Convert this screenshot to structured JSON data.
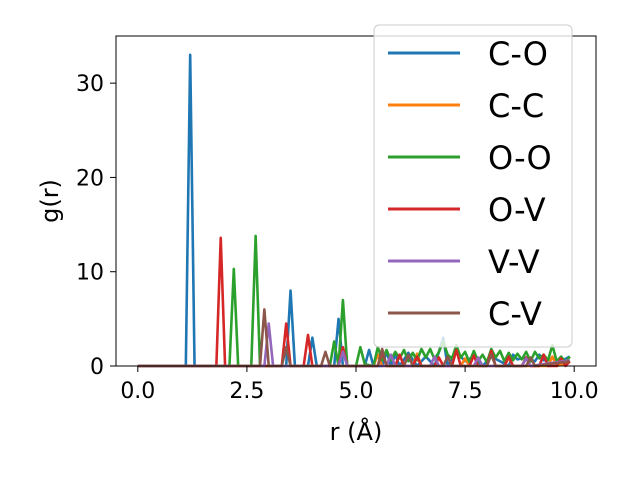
{
  "chart_data": {
    "type": "line",
    "title": "",
    "xlabel": "r (Å)",
    "ylabel": "g(r)",
    "xlim": [
      -0.5,
      10.5
    ],
    "ylim": [
      0,
      35
    ],
    "xticks": [
      0.0,
      2.5,
      5.0,
      7.5,
      10.0
    ],
    "xtick_labels": [
      "0.0",
      "2.5",
      "5.0",
      "7.5",
      "10.0"
    ],
    "yticks": [
      0,
      10,
      20,
      30
    ],
    "ytick_labels": [
      "0",
      "10",
      "20",
      "30"
    ],
    "grid": false,
    "legend_position": "upper-right",
    "series": [
      {
        "name": "C-O",
        "color": "#1f77b4",
        "x": [
          0.0,
          1.1,
          1.2,
          1.3,
          3.4,
          3.5,
          3.6,
          3.9,
          4.0,
          4.1,
          4.5,
          4.6,
          4.7,
          5.2,
          5.3,
          5.4,
          5.6,
          5.7,
          5.8,
          5.9,
          6.0,
          6.2,
          6.4,
          6.6,
          6.8,
          7.0,
          7.1,
          7.3,
          7.5,
          7.7,
          7.9,
          8.1,
          8.3,
          8.5,
          8.6,
          8.7,
          8.9,
          9.1,
          9.2,
          9.3,
          9.5,
          9.7,
          9.9
        ],
        "y": [
          0,
          0,
          33,
          0,
          0,
          8,
          0,
          0,
          3,
          0,
          0,
          5,
          0,
          0,
          1.7,
          0,
          0,
          1.5,
          0,
          1.2,
          0,
          1.4,
          0,
          1,
          0,
          3,
          0,
          1.5,
          0.5,
          1,
          0,
          1,
          0.5,
          0,
          1.2,
          0.7,
          0.9,
          0.5,
          1.2,
          0.6,
          0.8,
          0.5,
          1.0
        ]
      },
      {
        "name": "C-C",
        "color": "#ff7f0e",
        "x": [
          0.0,
          5.4,
          5.5,
          5.6,
          6.3,
          6.4,
          6.5,
          7.4,
          7.5,
          7.6,
          8.4,
          8.5,
          8.6,
          9.4,
          9.5,
          9.6,
          9.9
        ],
        "y": [
          0,
          0,
          1.2,
          0,
          0,
          1.3,
          0,
          0,
          0.8,
          0,
          0,
          0.9,
          0,
          0,
          1.0,
          0,
          0.4
        ]
      },
      {
        "name": "O-O",
        "color": "#2ca02c",
        "x": [
          0.0,
          2.1,
          2.2,
          2.3,
          2.6,
          2.7,
          2.8,
          4.4,
          4.5,
          4.6,
          4.7,
          4.8,
          5.0,
          5.1,
          5.2,
          5.4,
          5.5,
          5.6,
          5.7,
          5.8,
          5.9,
          6.0,
          6.1,
          6.2,
          6.3,
          6.4,
          6.5,
          6.6,
          6.7,
          6.8,
          6.9,
          7.0,
          7.1,
          7.2,
          7.3,
          7.4,
          7.5,
          7.6,
          7.7,
          7.8,
          7.9,
          8.0,
          8.1,
          8.2,
          8.3,
          8.4,
          8.5,
          8.6,
          8.7,
          8.8,
          8.9,
          9.0,
          9.1,
          9.2,
          9.3,
          9.4,
          9.5,
          9.6,
          9.7,
          9.8,
          9.9
        ],
        "y": [
          0,
          0,
          10.3,
          0,
          0,
          13.8,
          0,
          0,
          2.6,
          0,
          7,
          0,
          0,
          2,
          0.2,
          0,
          2,
          0.6,
          1.7,
          0.6,
          1.5,
          0.8,
          1.7,
          0.5,
          1.4,
          0.6,
          1.8,
          0.9,
          1.8,
          0.7,
          1.5,
          2.6,
          1.2,
          0.8,
          2.2,
          0.9,
          1.5,
          0.4,
          1.6,
          0.5,
          1.2,
          0.4,
          1.8,
          0.9,
          1.6,
          0.5,
          1.4,
          0.6,
          1.3,
          0.7,
          1.5,
          0.5,
          1.5,
          0.8,
          1.2,
          0.6,
          2.2,
          0.5,
          1.0,
          0.4,
          1.0
        ]
      },
      {
        "name": "O-V",
        "color": "#d62728",
        "x": [
          0.0,
          1.8,
          1.9,
          2.0,
          3.3,
          3.4,
          3.5,
          3.8,
          3.9,
          4.0,
          4.6,
          4.7,
          4.8,
          5.5,
          5.6,
          5.7,
          5.9,
          6.0,
          6.1,
          6.3,
          6.4,
          6.5,
          6.8,
          6.9,
          7.0,
          7.2,
          7.3,
          7.4,
          7.6,
          7.7,
          7.8,
          8.0,
          8.1,
          8.2,
          8.4,
          8.5,
          8.6,
          8.8,
          8.9,
          9.0,
          9.2,
          9.3,
          9.4,
          9.6,
          9.7,
          9.8,
          9.9
        ],
        "y": [
          0,
          0,
          13.6,
          0,
          0,
          4.5,
          0,
          0,
          3.3,
          0,
          0,
          2,
          0,
          0,
          1.5,
          0,
          0,
          1.2,
          0,
          0,
          1.0,
          0,
          0,
          0.9,
          0,
          0,
          1.7,
          0,
          0,
          1.1,
          0,
          0,
          1.6,
          0,
          0,
          1.0,
          0,
          0,
          0.9,
          0,
          0,
          1.2,
          0,
          0,
          0.8,
          0,
          0.5
        ]
      },
      {
        "name": "V-V",
        "color": "#9467bd",
        "x": [
          0.0,
          2.9,
          3.0,
          3.1,
          4.6,
          4.7,
          4.8,
          5.7,
          5.8,
          5.9,
          6.7,
          6.8,
          6.9,
          7.7,
          7.8,
          7.9,
          8.8,
          8.9,
          9.0,
          9.9
        ],
        "y": [
          0,
          0,
          4.5,
          0,
          0,
          1.5,
          0,
          0,
          1.2,
          0,
          0,
          1.0,
          0,
          0,
          0.9,
          0,
          0,
          0.8,
          0,
          0.6
        ]
      },
      {
        "name": "C-V",
        "color": "#8c564b",
        "x": [
          0.0,
          2.8,
          2.9,
          3.0,
          3.3,
          3.4,
          3.5,
          4.2,
          4.3,
          4.4,
          5.5,
          5.6,
          5.7,
          6.1,
          6.2,
          6.3,
          7.0,
          7.1,
          7.2,
          8.0,
          8.1,
          8.2,
          8.9,
          9.0,
          9.1,
          9.9
        ],
        "y": [
          0,
          0,
          6.0,
          0,
          0,
          2.0,
          0,
          0,
          1.5,
          0,
          0,
          1.8,
          0,
          0,
          1.2,
          0,
          0,
          1.0,
          0,
          0,
          1.2,
          0,
          0,
          0.9,
          0,
          0.5
        ]
      }
    ]
  }
}
